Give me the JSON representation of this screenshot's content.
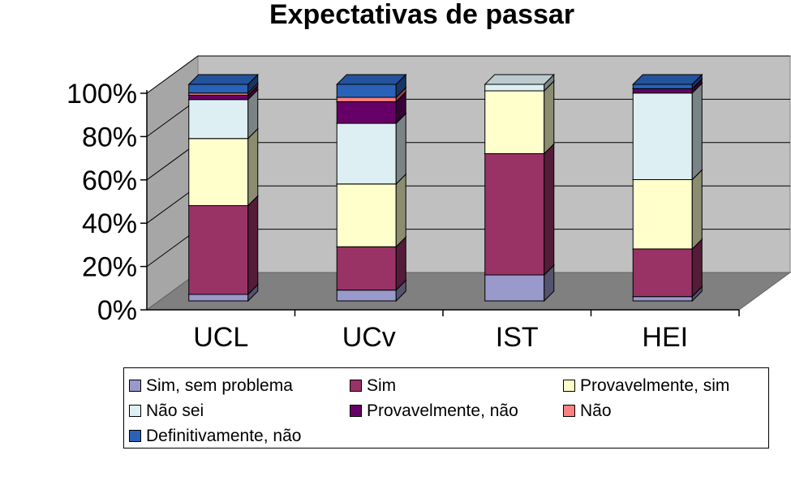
{
  "title": "Expectativas de passar",
  "chart_data": {
    "type": "bar",
    "stacked": true,
    "percent_stacked": true,
    "three_d": true,
    "title": "Expectativas de passar",
    "categories": [
      "UCL",
      "UCv",
      "IST",
      "HEI"
    ],
    "ylim": [
      0,
      100
    ],
    "yticks": [
      "0%",
      "20%",
      "40%",
      "60%",
      "80%",
      "100%"
    ],
    "grid": true,
    "legend_position": "bottom",
    "series": [
      {
        "name": "Sim, sem problema",
        "color": "#9999CC",
        "values": [
          3,
          5,
          12,
          2
        ]
      },
      {
        "name": "Sim",
        "color": "#993366",
        "values": [
          41,
          20,
          56,
          22
        ]
      },
      {
        "name": "Provavelmente, sim",
        "color": "#FFFFCC",
        "values": [
          31,
          29,
          29,
          32
        ]
      },
      {
        "name": "Não sei",
        "color": "#DDEFF2",
        "values": [
          18,
          28,
          3,
          40
        ]
      },
      {
        "name": "Provavelmente, não",
        "color": "#660066",
        "values": [
          2,
          10,
          0,
          2
        ]
      },
      {
        "name": "Não",
        "color": "#FF8080",
        "values": [
          1,
          2,
          0,
          0
        ]
      },
      {
        "name": "Definitivamente, não",
        "color": "#2A62B8",
        "values": [
          4,
          6,
          0,
          2
        ]
      }
    ]
  }
}
